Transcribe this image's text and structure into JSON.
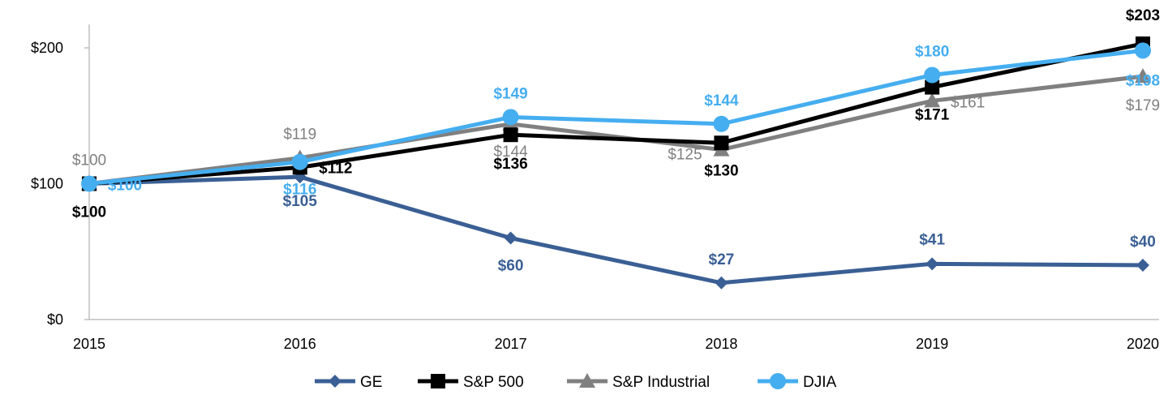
{
  "chart_data": {
    "type": "line",
    "categories": [
      "2015",
      "2016",
      "2017",
      "2018",
      "2019",
      "2020"
    ],
    "ylim": [
      0,
      210
    ],
    "yticks": [
      {
        "value": 0,
        "label": "$0"
      },
      {
        "value": 100,
        "label": "$100"
      },
      {
        "value": 200,
        "label": "$200"
      }
    ],
    "title": "",
    "xlabel": "",
    "ylabel": "",
    "legend_position": "bottom",
    "grid": false,
    "series": [
      {
        "name": "GE",
        "color": "#3a5f94",
        "marker": "diamond",
        "values": [
          100,
          105,
          60,
          27,
          41,
          40
        ],
        "labels": [
          "",
          "$105",
          "$60",
          "$27",
          "$41",
          "$40"
        ]
      },
      {
        "name": "S&P 500",
        "color": "#000000",
        "marker": "square",
        "values": [
          100,
          112,
          136,
          130,
          171,
          203
        ],
        "labels": [
          "$100",
          "$112",
          "$136",
          "$130",
          "$171",
          "$203"
        ]
      },
      {
        "name": "S&P Industrial",
        "color": "#808080",
        "marker": "triangle",
        "values": [
          100,
          119,
          144,
          125,
          161,
          179
        ],
        "labels": [
          "$100",
          "$119",
          "$144",
          "$125",
          "$161",
          "$179"
        ]
      },
      {
        "name": "DJIA",
        "color": "#45aef0",
        "marker": "circle",
        "values": [
          100,
          116,
          149,
          144,
          180,
          198
        ],
        "labels": [
          "$100",
          "$116",
          "$149",
          "$144",
          "$180",
          "$198"
        ]
      }
    ]
  }
}
